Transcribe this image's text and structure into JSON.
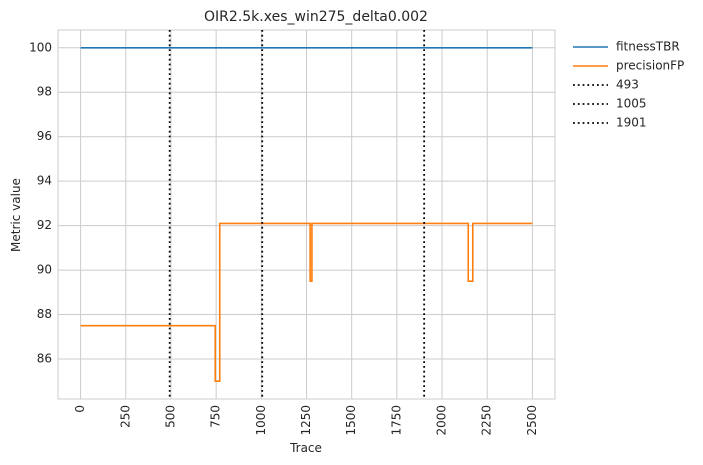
{
  "chart_data": {
    "type": "line",
    "title": "OIR2.5k.xes_win275_delta0.002",
    "xlabel": "Trace",
    "ylabel": "Metric value",
    "xlim": [
      -125,
      2625
    ],
    "ylim": [
      84.2,
      100.8
    ],
    "xticks": [
      "0",
      "250",
      "500",
      "750",
      "1000",
      "1250",
      "1500",
      "1750",
      "2000",
      "2250",
      "2500"
    ],
    "yticks": [
      "86",
      "88",
      "90",
      "92",
      "94",
      "96",
      "98",
      "100"
    ],
    "grid": true,
    "legend_position": "outside-top-right",
    "series": [
      {
        "name": "fitnessTBR",
        "color": "#1f77b4",
        "style": "solid",
        "points": [
          [
            0,
            100
          ],
          [
            2500,
            100
          ]
        ]
      },
      {
        "name": "precisionFP",
        "color": "#ff7f0e",
        "style": "solid",
        "points": [
          [
            0,
            87.5
          ],
          [
            745,
            87.5
          ],
          [
            745,
            85.0
          ],
          [
            770,
            85.0
          ],
          [
            770,
            92.1
          ],
          [
            1270,
            92.1
          ],
          [
            1270,
            89.5
          ],
          [
            1280,
            89.5
          ],
          [
            1280,
            92.1
          ],
          [
            2145,
            92.1
          ],
          [
            2145,
            89.5
          ],
          [
            2170,
            89.5
          ],
          [
            2170,
            92.1
          ],
          [
            2500,
            92.1
          ]
        ]
      }
    ],
    "vlines": [
      {
        "name": "493",
        "x": 493,
        "color": "#000000",
        "style": "dotted"
      },
      {
        "name": "1005",
        "x": 1005,
        "color": "#000000",
        "style": "dotted"
      },
      {
        "name": "1901",
        "x": 1901,
        "color": "#000000",
        "style": "dotted"
      }
    ]
  }
}
